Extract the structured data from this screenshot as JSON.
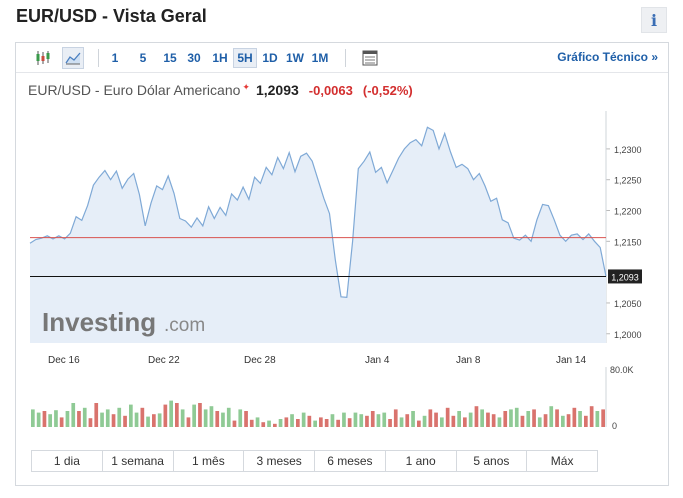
{
  "page": {
    "title": "EUR/USD - Vista Geral",
    "info_glyph": "i"
  },
  "toolbar": {
    "timeframes": [
      "1",
      "5",
      "15",
      "30",
      "1H",
      "5H",
      "1D",
      "1W",
      "1M"
    ],
    "active_timeframe": "5H",
    "tech_chart_link": "Gráfico Técnico »"
  },
  "quote": {
    "name": "EUR/USD - Euro Dólar Americano",
    "price": "1,2093",
    "change": "-0,0063",
    "change_pct": "(-0,52%)",
    "change_color": "#d32f2f"
  },
  "chart_data": {
    "type": "area",
    "y_tick_labels": [
      "1,2300",
      "1,2250",
      "1,2200",
      "1,2150",
      "1,2050",
      "1,2000"
    ],
    "ylim": [
      1.1985,
      1.2355
    ],
    "x_tick_labels": [
      "Dec 16",
      "Dec 22",
      "Dec 28",
      "Jan 4",
      "Jan 8",
      "Jan 14"
    ],
    "reference_line": 1.2156,
    "last_price": 1.2093,
    "last_price_label": "1,2093",
    "series": [
      {
        "values": [
          1.2147,
          1.2153,
          1.2155,
          1.2159,
          1.2154,
          1.2159,
          1.2154,
          1.2163,
          1.219,
          1.2184,
          1.2208,
          1.2241,
          1.2254,
          1.2265,
          1.225,
          1.2264,
          1.2236,
          1.2251,
          1.226,
          1.2226,
          1.2175,
          1.2212,
          1.224,
          1.2234,
          1.2256,
          1.2228,
          1.2187,
          1.2183,
          1.2173,
          1.2188,
          1.2175,
          1.2206,
          1.2187,
          1.2205,
          1.2192,
          1.2227,
          1.2217,
          1.2238,
          1.2218,
          1.2254,
          1.2244,
          1.227,
          1.2258,
          1.2286,
          1.2268,
          1.2294,
          1.2263,
          1.2288,
          1.2293,
          1.228,
          1.225,
          1.222,
          1.2195,
          1.212,
          1.206,
          1.2059,
          1.215,
          1.2268,
          1.228,
          1.2295,
          1.2262,
          1.227,
          1.2245,
          1.2265,
          1.2285,
          1.23,
          1.231,
          1.2315,
          1.2305,
          1.2335,
          1.233,
          1.23,
          1.2325,
          1.2295,
          1.227,
          1.2275,
          1.2268,
          1.225,
          1.226,
          1.224,
          1.2215,
          1.222,
          1.2185,
          1.218,
          1.2155,
          1.2152,
          1.216,
          1.215,
          1.2185,
          1.221,
          1.2208,
          1.2185,
          1.216,
          1.215,
          1.216,
          1.2162,
          1.2153,
          1.2162,
          1.215,
          1.214,
          1.2093
        ]
      }
    ],
    "volume_tick_labels": [
      "80.0K",
      "0"
    ],
    "volume_colors": {
      "up": "#8fca95",
      "down": "#d9736d"
    },
    "volume": [
      {
        "v": 22,
        "up": true
      },
      {
        "v": 18,
        "up": true
      },
      {
        "v": 20,
        "up": false
      },
      {
        "v": 16,
        "up": true
      },
      {
        "v": 21,
        "up": true
      },
      {
        "v": 12,
        "up": false
      },
      {
        "v": 20,
        "up": true
      },
      {
        "v": 30,
        "up": true
      },
      {
        "v": 20,
        "up": false
      },
      {
        "v": 24,
        "up": true
      },
      {
        "v": 11,
        "up": false
      },
      {
        "v": 30,
        "up": false
      },
      {
        "v": 18,
        "up": true
      },
      {
        "v": 22,
        "up": true
      },
      {
        "v": 16,
        "up": false
      },
      {
        "v": 24,
        "up": true
      },
      {
        "v": 14,
        "up": false
      },
      {
        "v": 28,
        "up": true
      },
      {
        "v": 18,
        "up": true
      },
      {
        "v": 24,
        "up": false
      },
      {
        "v": 13,
        "up": true
      },
      {
        "v": 16,
        "up": false
      },
      {
        "v": 17,
        "up": true
      },
      {
        "v": 28,
        "up": false
      },
      {
        "v": 33,
        "up": true
      },
      {
        "v": 30,
        "up": false
      },
      {
        "v": 22,
        "up": true
      },
      {
        "v": 12,
        "up": false
      },
      {
        "v": 28,
        "up": true
      },
      {
        "v": 30,
        "up": false
      },
      {
        "v": 22,
        "up": true
      },
      {
        "v": 26,
        "up": true
      },
      {
        "v": 20,
        "up": false
      },
      {
        "v": 18,
        "up": true
      },
      {
        "v": 24,
        "up": true
      },
      {
        "v": 8,
        "up": false
      },
      {
        "v": 22,
        "up": true
      },
      {
        "v": 20,
        "up": false
      },
      {
        "v": 9,
        "up": false
      },
      {
        "v": 12,
        "up": true
      },
      {
        "v": 6,
        "up": false
      },
      {
        "v": 8,
        "up": true
      },
      {
        "v": 4,
        "up": false
      },
      {
        "v": 10,
        "up": true
      },
      {
        "v": 12,
        "up": false
      },
      {
        "v": 16,
        "up": true
      },
      {
        "v": 10,
        "up": false
      },
      {
        "v": 18,
        "up": true
      },
      {
        "v": 14,
        "up": false
      },
      {
        "v": 8,
        "up": true
      },
      {
        "v": 12,
        "up": false
      },
      {
        "v": 10,
        "up": false
      },
      {
        "v": 16,
        "up": true
      },
      {
        "v": 9,
        "up": false
      },
      {
        "v": 18,
        "up": true
      },
      {
        "v": 11,
        "up": false
      },
      {
        "v": 18,
        "up": true
      },
      {
        "v": 16,
        "up": true
      },
      {
        "v": 14,
        "up": false
      },
      {
        "v": 20,
        "up": false
      },
      {
        "v": 16,
        "up": true
      },
      {
        "v": 18,
        "up": true
      },
      {
        "v": 10,
        "up": false
      },
      {
        "v": 22,
        "up": false
      },
      {
        "v": 12,
        "up": true
      },
      {
        "v": 16,
        "up": false
      },
      {
        "v": 20,
        "up": true
      },
      {
        "v": 8,
        "up": false
      },
      {
        "v": 14,
        "up": true
      },
      {
        "v": 22,
        "up": false
      },
      {
        "v": 18,
        "up": false
      },
      {
        "v": 12,
        "up": true
      },
      {
        "v": 24,
        "up": false
      },
      {
        "v": 14,
        "up": false
      },
      {
        "v": 20,
        "up": true
      },
      {
        "v": 12,
        "up": false
      },
      {
        "v": 18,
        "up": true
      },
      {
        "v": 26,
        "up": false
      },
      {
        "v": 22,
        "up": true
      },
      {
        "v": 18,
        "up": false
      },
      {
        "v": 16,
        "up": false
      },
      {
        "v": 12,
        "up": true
      },
      {
        "v": 20,
        "up": false
      },
      {
        "v": 22,
        "up": true
      },
      {
        "v": 24,
        "up": true
      },
      {
        "v": 14,
        "up": false
      },
      {
        "v": 20,
        "up": true
      },
      {
        "v": 22,
        "up": false
      },
      {
        "v": 12,
        "up": true
      },
      {
        "v": 16,
        "up": false
      },
      {
        "v": 26,
        "up": true
      },
      {
        "v": 22,
        "up": false
      },
      {
        "v": 14,
        "up": true
      },
      {
        "v": 16,
        "up": false
      },
      {
        "v": 24,
        "up": false
      },
      {
        "v": 20,
        "up": true
      },
      {
        "v": 14,
        "up": false
      },
      {
        "v": 26,
        "up": false
      },
      {
        "v": 20,
        "up": true
      },
      {
        "v": 22,
        "up": false
      }
    ],
    "watermark": {
      "brand": "Investing",
      "suffix": ".com"
    }
  },
  "range_buttons": [
    "1 dia",
    "1 semana",
    "1 mês",
    "3 meses",
    "6 meses",
    "1 ano",
    "5 anos",
    "Máx"
  ]
}
